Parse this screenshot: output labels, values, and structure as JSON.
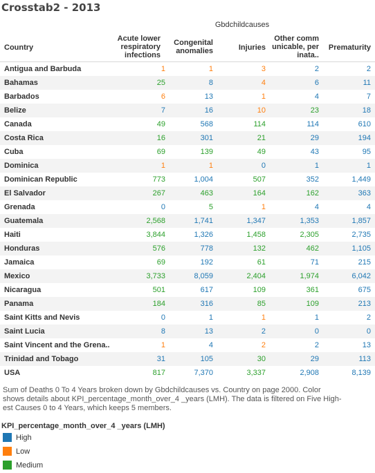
{
  "title": "Crosstab2 - 2013",
  "column_group": "Gbdchildcauses",
  "row_header": "Country",
  "columns": [
    [
      "Acute lower",
      "respiratory",
      "infections"
    ],
    [
      "Congenital",
      "anomalies"
    ],
    [
      "Injuries"
    ],
    [
      "Other comm",
      "unicable, per",
      "inata.."
    ],
    [
      "Prematurity"
    ]
  ],
  "colors": {
    "High": "#1f77b4",
    "Low": "#ff7f0e",
    "Medium": "#2ca02c"
  },
  "chart_data": {
    "type": "table",
    "title": "Crosstab2 - 2013",
    "rows": [
      {
        "country": "Antigua and Barbuda",
        "values": [
          "1",
          "1",
          "3",
          "2",
          "2"
        ],
        "levels": [
          "Low",
          "Low",
          "Low",
          "High",
          "High"
        ]
      },
      {
        "country": "Bahamas",
        "values": [
          "25",
          "8",
          "4",
          "6",
          "11"
        ],
        "levels": [
          "Medium",
          "High",
          "Low",
          "High",
          "High"
        ]
      },
      {
        "country": "Barbados",
        "values": [
          "6",
          "13",
          "1",
          "4",
          "7"
        ],
        "levels": [
          "Low",
          "High",
          "Low",
          "High",
          "High"
        ]
      },
      {
        "country": "Belize",
        "values": [
          "7",
          "16",
          "10",
          "23",
          "18"
        ],
        "levels": [
          "High",
          "High",
          "Low",
          "Medium",
          "High"
        ]
      },
      {
        "country": "Canada",
        "values": [
          "49",
          "568",
          "114",
          "114",
          "610"
        ],
        "levels": [
          "Medium",
          "High",
          "Medium",
          "High",
          "High"
        ]
      },
      {
        "country": "Costa Rica",
        "values": [
          "16",
          "301",
          "21",
          "29",
          "194"
        ],
        "levels": [
          "Medium",
          "High",
          "Medium",
          "High",
          "High"
        ]
      },
      {
        "country": "Cuba",
        "values": [
          "69",
          "139",
          "49",
          "43",
          "95"
        ],
        "levels": [
          "Medium",
          "Medium",
          "Medium",
          "High",
          "High"
        ]
      },
      {
        "country": "Dominica",
        "values": [
          "1",
          "1",
          "0",
          "1",
          "1"
        ],
        "levels": [
          "Low",
          "Low",
          "High",
          "High",
          "High"
        ]
      },
      {
        "country": "Dominican Republic",
        "values": [
          "773",
          "1,004",
          "507",
          "352",
          "1,449"
        ],
        "levels": [
          "Medium",
          "High",
          "Medium",
          "High",
          "High"
        ]
      },
      {
        "country": "El Salvador",
        "values": [
          "267",
          "463",
          "164",
          "162",
          "363"
        ],
        "levels": [
          "Medium",
          "Medium",
          "Medium",
          "Medium",
          "High"
        ]
      },
      {
        "country": "Grenada",
        "values": [
          "0",
          "5",
          "1",
          "4",
          "4"
        ],
        "levels": [
          "High",
          "Medium",
          "Low",
          "High",
          "High"
        ]
      },
      {
        "country": "Guatemala",
        "values": [
          "2,568",
          "1,741",
          "1,347",
          "1,353",
          "1,857"
        ],
        "levels": [
          "Medium",
          "High",
          "High",
          "High",
          "High"
        ]
      },
      {
        "country": "Haiti",
        "values": [
          "3,844",
          "1,326",
          "1,458",
          "2,305",
          "2,735"
        ],
        "levels": [
          "Medium",
          "High",
          "Medium",
          "Medium",
          "High"
        ]
      },
      {
        "country": "Honduras",
        "values": [
          "576",
          "778",
          "132",
          "462",
          "1,105"
        ],
        "levels": [
          "Medium",
          "High",
          "Medium",
          "Medium",
          "High"
        ]
      },
      {
        "country": "Jamaica",
        "values": [
          "69",
          "192",
          "61",
          "71",
          "215"
        ],
        "levels": [
          "Medium",
          "High",
          "Medium",
          "High",
          "High"
        ]
      },
      {
        "country": "Mexico",
        "values": [
          "3,733",
          "8,059",
          "2,404",
          "1,974",
          "6,042"
        ],
        "levels": [
          "Medium",
          "High",
          "Medium",
          "Medium",
          "High"
        ]
      },
      {
        "country": "Nicaragua",
        "values": [
          "501",
          "617",
          "109",
          "361",
          "675"
        ],
        "levels": [
          "Medium",
          "High",
          "Medium",
          "Medium",
          "High"
        ]
      },
      {
        "country": "Panama",
        "values": [
          "184",
          "316",
          "85",
          "109",
          "213"
        ],
        "levels": [
          "Medium",
          "High",
          "Medium",
          "Medium",
          "High"
        ]
      },
      {
        "country": "Saint Kitts and Nevis",
        "values": [
          "0",
          "1",
          "1",
          "1",
          "2"
        ],
        "levels": [
          "High",
          "High",
          "Low",
          "High",
          "High"
        ]
      },
      {
        "country": "Saint Lucia",
        "values": [
          "8",
          "13",
          "2",
          "0",
          "0"
        ],
        "levels": [
          "High",
          "High",
          "High",
          "High",
          "High"
        ]
      },
      {
        "country": "Saint Vincent and the Grena..",
        "values": [
          "1",
          "4",
          "2",
          "2",
          "13"
        ],
        "levels": [
          "Low",
          "High",
          "Low",
          "High",
          "High"
        ]
      },
      {
        "country": "Trinidad and Tobago",
        "values": [
          "31",
          "105",
          "30",
          "29",
          "113"
        ],
        "levels": [
          "High",
          "High",
          "Medium",
          "High",
          "High"
        ]
      },
      {
        "country": "USA",
        "values": [
          "817",
          "7,370",
          "3,337",
          "2,908",
          "8,139"
        ],
        "levels": [
          "Medium",
          "High",
          "Medium",
          "High",
          "High"
        ]
      }
    ]
  },
  "caption_lines": [
    "Sum of Deaths 0 To 4 Years broken down by Gbdchildcauses vs. Country on page 2000.  Color",
    "shows details about KPI_percentage_month_over_4 _years (LMH). The data is filtered on Five High-",
    "est Causes 0 to 4 Years, which keeps 5 members."
  ],
  "legend": {
    "title": "KPI_percentage_month_over_4 _years (LMH)",
    "items": [
      "High",
      "Low",
      "Medium"
    ]
  }
}
